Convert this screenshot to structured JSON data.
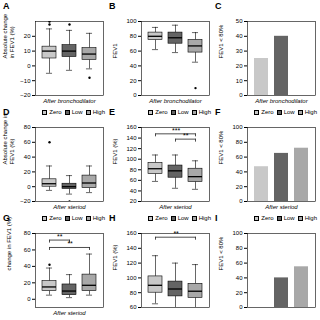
{
  "chart_data": [
    {
      "type": "box",
      "title": "A",
      "ylabel": "Absolute change\nin FEV1 (%)",
      "xlabel": "After bronchodilator",
      "ylim": [
        -20,
        30
      ],
      "yticks": [
        -20,
        -10,
        0,
        10,
        20
      ],
      "tick_labels": "y",
      "legend": false,
      "series": [
        {
          "name": "Zero",
          "color": "#c8c8c8",
          "med": 10,
          "q1": 5,
          "q3": 13,
          "whislo": -5,
          "whishi": 25,
          "fliers": [
            30,
            28
          ]
        },
        {
          "name": "Low",
          "color": "#646464",
          "med": 10,
          "q1": 6,
          "q3": 14,
          "whislo": -3,
          "whishi": 24,
          "fliers": [
            28
          ]
        },
        {
          "name": "High",
          "color": "#a8a8a8",
          "med": 8,
          "q1": 4,
          "q3": 12,
          "whislo": -2,
          "whishi": 22,
          "fliers": [
            -8
          ]
        }
      ]
    },
    {
      "type": "box",
      "title": "B",
      "ylabel": "FEV1",
      "xlabel": "After bronchodilator",
      "ylim": [
        0,
        100
      ],
      "yticks": [
        0,
        20,
        40,
        60,
        80,
        100
      ],
      "tick_labels": "y",
      "legend": false,
      "series": [
        {
          "name": "Zero",
          "color": "#c8c8c8",
          "med": 80,
          "q1": 75,
          "q3": 85,
          "whislo": 62,
          "whishi": 92,
          "fliers": []
        },
        {
          "name": "Low",
          "color": "#646464",
          "med": 78,
          "q1": 70,
          "q3": 85,
          "whislo": 58,
          "whishi": 95,
          "fliers": []
        },
        {
          "name": "High",
          "color": "#a8a8a8",
          "med": 67,
          "q1": 58,
          "q3": 75,
          "whislo": 45,
          "whishi": 85,
          "fliers": [
            10
          ]
        }
      ]
    },
    {
      "type": "bar",
      "title": "C",
      "ylabel": "FEV1 < 80%",
      "xlabel": "After bronchodilator",
      "ylim": [
        0,
        50
      ],
      "yticks": [
        0,
        10,
        20,
        30,
        40,
        50
      ],
      "tick_labels": "y",
      "legend": false,
      "series": [
        {
          "name": "Zero",
          "color": "#c8c8c8",
          "values": [
            25
          ]
        },
        {
          "name": "Low",
          "color": "#646464",
          "values": [
            40
          ]
        },
        {
          "name": "High",
          "color": "#a8a8a8",
          "values": [
            0
          ]
        }
      ]
    },
    {
      "type": "box",
      "title": "D",
      "ylabel": "Absolute change in\nFEV1 (%)",
      "xlabel": "After steriod",
      "ylim": [
        -20,
        80
      ],
      "yticks": [
        -20,
        0,
        20,
        40,
        60,
        80
      ],
      "tick_labels": "y",
      "legend": "upper right",
      "series": [
        {
          "name": "Zero",
          "color": "#c8c8c8",
          "med": 4,
          "q1": 0,
          "q3": 10,
          "whislo": -5,
          "whishi": 28,
          "fliers": [
            60
          ]
        },
        {
          "name": "Low",
          "color": "#646464",
          "med": 0,
          "q1": -3,
          "q3": 4,
          "whislo": -10,
          "whishi": 15,
          "fliers": [
            -20
          ]
        },
        {
          "name": "High",
          "color": "#a8a8a8",
          "med": 5,
          "q1": -2,
          "q3": 15,
          "whislo": -8,
          "whishi": 28,
          "fliers": []
        }
      ]
    },
    {
      "type": "box",
      "title": "E",
      "ylabel": "FEV1 (%)",
      "xlabel": "After steriod",
      "ylim": [
        20,
        160
      ],
      "yticks": [
        20,
        40,
        60,
        80,
        100,
        120,
        140,
        160
      ],
      "tick_labels": "y",
      "legend": "upper right",
      "series": [
        {
          "name": "Zero",
          "color": "#c8c8c8",
          "med": 82,
          "q1": 72,
          "q3": 93,
          "whislo": 58,
          "whishi": 108,
          "fliers": []
        },
        {
          "name": "Low",
          "color": "#646464",
          "med": 78,
          "q1": 65,
          "q3": 88,
          "whislo": 45,
          "whishi": 108,
          "fliers": []
        },
        {
          "name": "High",
          "color": "#a8a8a8",
          "med": 67,
          "q1": 57,
          "q3": 82,
          "whislo": 43,
          "whishi": 97,
          "fliers": []
        }
      ],
      "sig_lines": [
        {
          "y": 148,
          "x1": "Zero",
          "x2": "High",
          "label": "***"
        },
        {
          "y": 138,
          "x1": "Low",
          "x2": "High",
          "label": "**"
        }
      ]
    },
    {
      "type": "bar",
      "title": "F",
      "ylabel": "FEV1 < 80%",
      "xlabel": "After steriod",
      "ylim": [
        0,
        100
      ],
      "yticks": [
        0,
        20,
        40,
        60,
        80,
        100
      ],
      "tick_labels": "y",
      "legend": "upper right",
      "series": [
        {
          "name": "Zero",
          "color": "#c8c8c8",
          "values": [
            47
          ]
        },
        {
          "name": "Low",
          "color": "#646464",
          "values": [
            65
          ]
        },
        {
          "name": "High",
          "color": "#a8a8a8",
          "values": [
            72
          ]
        }
      ]
    },
    {
      "type": "box",
      "title": "G",
      "ylabel": "change in FEV1 (%)",
      "xlabel": "After steriod",
      "ylim": [
        -10,
        80
      ],
      "yticks": [
        0,
        20,
        40,
        60,
        80
      ],
      "tick_labels": "y",
      "legend": "upper right",
      "series": [
        {
          "name": "Zero",
          "color": "#c8c8c8",
          "med": 15,
          "q1": 10,
          "q3": 22,
          "whislo": 5,
          "whishi": 38,
          "fliers": [
            42
          ]
        },
        {
          "name": "Low",
          "color": "#646464",
          "med": 10,
          "q1": 5,
          "q3": 18,
          "whislo": 2,
          "whishi": 30,
          "fliers": []
        },
        {
          "name": "High",
          "color": "#a8a8a8",
          "med": 17,
          "q1": 10,
          "q3": 30,
          "whislo": 5,
          "whishi": 55,
          "fliers": []
        }
      ],
      "sig_lines": [
        {
          "y": 72,
          "x1": "Zero",
          "x2": "Low",
          "label": "**"
        },
        {
          "y": 63,
          "x1": "Zero",
          "x2": "High",
          "label": "**"
        }
      ]
    },
    {
      "type": "box",
      "title": "H",
      "ylabel": "FEV1 (%)",
      "ylim": [
        60,
        160
      ],
      "yticks": [
        60,
        80,
        100,
        120,
        140,
        160
      ],
      "tick_labels": "y",
      "legend": "upper right",
      "series": [
        {
          "name": "Zero",
          "color": "#c8c8c8",
          "med": 90,
          "q1": 80,
          "q3": 102,
          "whislo": 65,
          "whishi": 130,
          "fliers": []
        },
        {
          "name": "Low",
          "color": "#646464",
          "med": 85,
          "q1": 75,
          "q3": 95,
          "whislo": 60,
          "whishi": 120,
          "fliers": []
        },
        {
          "name": "High",
          "color": "#a8a8a8",
          "med": 82,
          "q1": 73,
          "q3": 92,
          "whislo": 60,
          "whishi": 118,
          "fliers": []
        }
      ],
      "sig_lines": [
        {
          "y": 155,
          "x1": "Zero",
          "x2": "High",
          "label": "**"
        }
      ]
    },
    {
      "type": "bar",
      "title": "I",
      "ylabel": "FEV1 < 80%",
      "ylim": [
        0,
        100
      ],
      "yticks": [
        0,
        20,
        40,
        60,
        80,
        100
      ],
      "tick_labels": "y",
      "legend": "upper right",
      "series": [
        {
          "name": "Zero",
          "color": "#c8c8c8",
          "values": [
            0
          ]
        },
        {
          "name": "Low",
          "color": "#646464",
          "values": [
            40
          ]
        },
        {
          "name": "High",
          "color": "#a8a8a8",
          "values": [
            55
          ]
        }
      ]
    }
  ]
}
